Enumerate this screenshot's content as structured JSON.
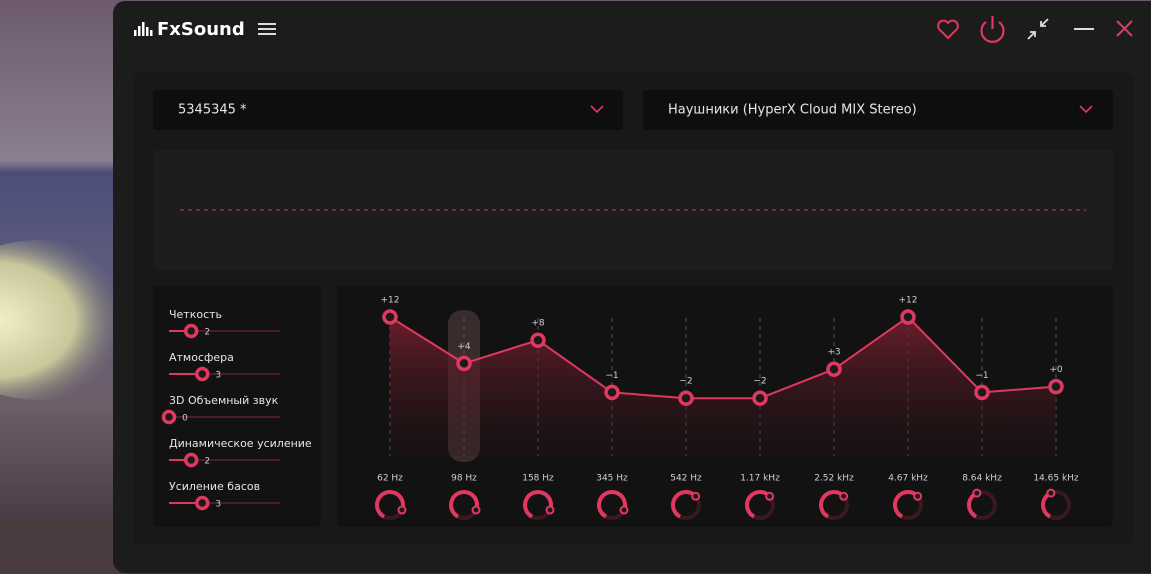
{
  "header": {
    "brand": "FxSound"
  },
  "preset": "5345345 *",
  "device": "Наушники (HyperX Cloud MIX Stereo)",
  "effects": [
    {
      "name": "Четкость",
      "value": 2
    },
    {
      "name": "Атмосфера",
      "value": 3
    },
    {
      "name": "3D Объемный звук",
      "value": 0
    },
    {
      "name": "Динамическое усиление",
      "value": 2
    },
    {
      "name": "Усиление басов",
      "value": 3
    }
  ],
  "eq": {
    "bands": [
      {
        "freq": "62 Hz",
        "value": 12,
        "value_label": "+12"
      },
      {
        "freq": "98 Hz",
        "value": 4,
        "value_label": "+4"
      },
      {
        "freq": "158 Hz",
        "value": 8,
        "value_label": "+8"
      },
      {
        "freq": "345 Hz",
        "value": -1,
        "value_label": "−1"
      },
      {
        "freq": "542 Hz",
        "value": -2,
        "value_label": "−2"
      },
      {
        "freq": "1.17 kHz",
        "value": -2,
        "value_label": "−2"
      },
      {
        "freq": "2.52 kHz",
        "value": 3,
        "value_label": "+3"
      },
      {
        "freq": "4.67 kHz",
        "value": 12,
        "value_label": "+12"
      },
      {
        "freq": "8.64 kHz",
        "value": -1,
        "value_label": "−1"
      },
      {
        "freq": "14.65 kHz",
        "value": 0,
        "value_label": "+0"
      }
    ]
  }
}
